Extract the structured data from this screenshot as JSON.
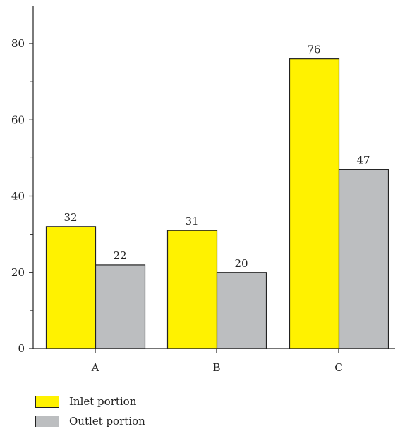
{
  "chart_data": {
    "type": "bar",
    "categories": [
      "A",
      "B",
      "C"
    ],
    "series": [
      {
        "name": "Inlet portion",
        "values": [
          32,
          31,
          76
        ],
        "color": "#FFF200"
      },
      {
        "name": "Outlet portion",
        "values": [
          22,
          20,
          47
        ],
        "color": "#BCBEC0"
      }
    ],
    "data_labels": [
      [
        "32",
        "31",
        "76"
      ],
      [
        "22",
        "20",
        "47"
      ]
    ],
    "ylim": [
      0,
      80
    ],
    "yticks": [
      "0",
      "20",
      "40",
      "60",
      "80"
    ],
    "title": "",
    "xlabel": "",
    "ylabel": "",
    "legend_position": "bottom-left",
    "grid": false
  }
}
